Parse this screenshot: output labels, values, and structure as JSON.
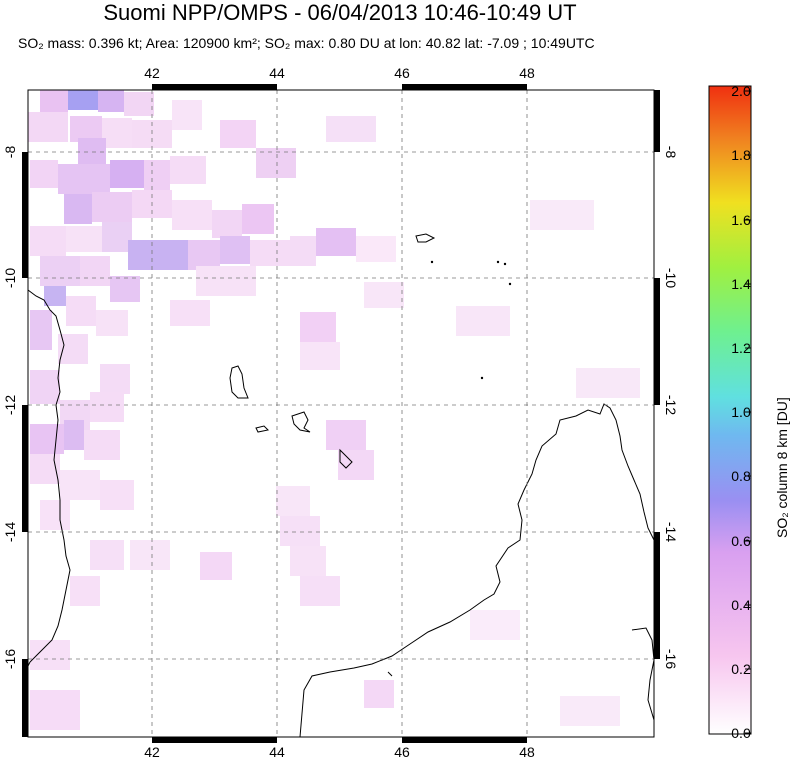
{
  "title": "Suomi NPP/OMPS - 06/04/2013 10:46-10:49 UT",
  "subtitle": {
    "mass": "SO₂ mass: 0.396 kt; Area: 120900 km²; SO₂ max: 0.80 DU at lon: 40.82 lat: -7.09 ; 10:49UTC"
  },
  "map": {
    "lon_ticks": [
      "42",
      "44",
      "46",
      "48"
    ],
    "lat_ticks": [
      "-8",
      "-10",
      "-12",
      "-14",
      "-16"
    ],
    "lon_range": [
      40.0,
      50.0
    ],
    "lat_range": [
      -17.3,
      -7.2
    ],
    "grid": "dashed"
  },
  "colorbar": {
    "label": "SO₂ column 8 km [DU]",
    "ticks": [
      "2.0",
      "1.8",
      "1.6",
      "1.4",
      "1.2",
      "1.0",
      "0.8",
      "0.6",
      "0.4",
      "0.2",
      "0.0"
    ],
    "range": [
      0.0,
      2.0
    ],
    "colors": [
      "#ffffff",
      "#f7c6ef",
      "#9a8ff2",
      "#5fc6f0",
      "#6ef0b0",
      "#a0f040",
      "#f0e020",
      "#f08020",
      "#f03010"
    ]
  }
}
